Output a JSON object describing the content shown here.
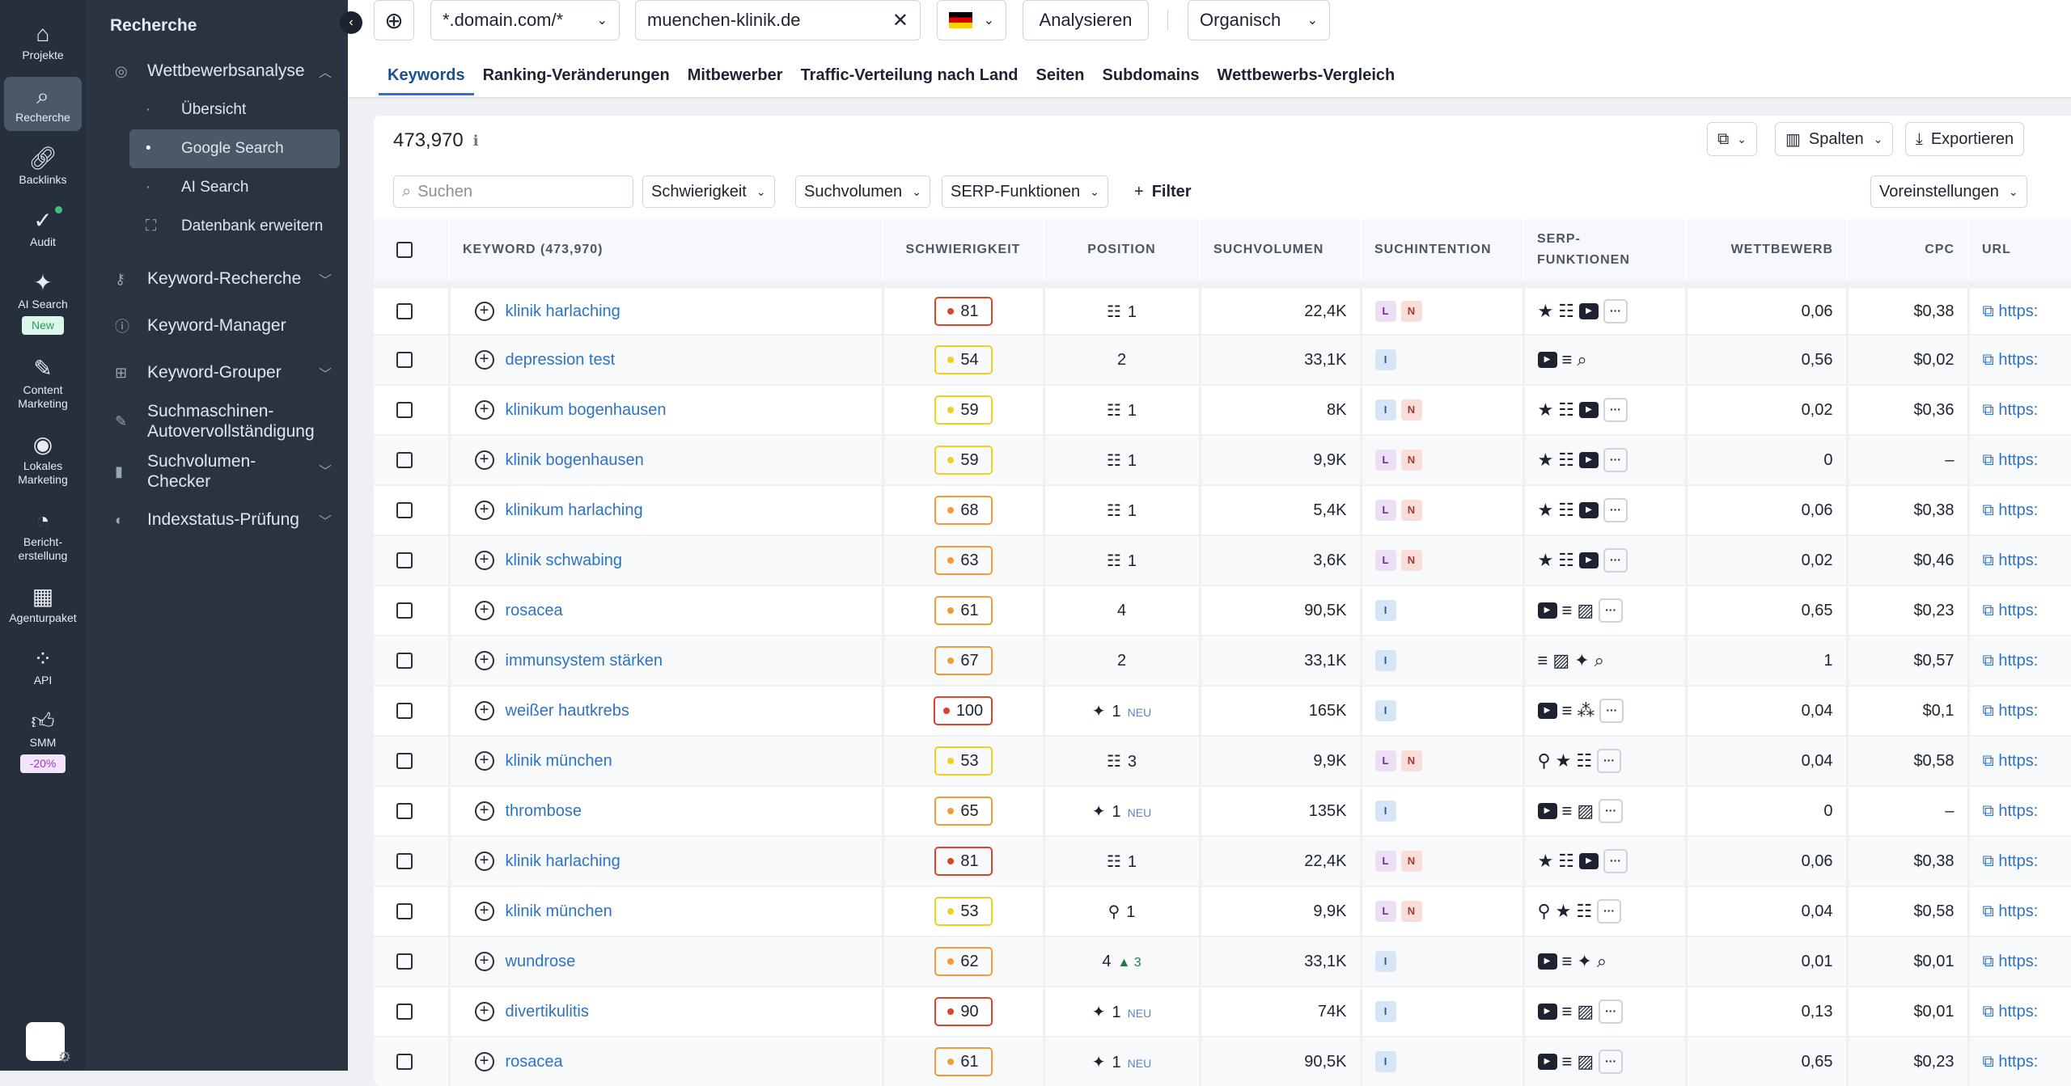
{
  "rail": [
    {
      "label": "Projekte",
      "icon": "home-icon",
      "glyph": "⌂"
    },
    {
      "label": "Recherche",
      "icon": "laptop-search-icon",
      "glyph": "⌕",
      "active": true
    },
    {
      "label": "Backlinks",
      "icon": "link-icon",
      "glyph": "🔗︎"
    },
    {
      "label": "Audit",
      "icon": "check-circle-icon",
      "glyph": "✓",
      "dot": true
    },
    {
      "label": "AI Search",
      "icon": "sparkles-icon",
      "glyph": "✦",
      "badge": "New",
      "badge_kind": "new"
    },
    {
      "label": "Content Marketing",
      "icon": "edit-icon",
      "glyph": "✎"
    },
    {
      "label": "Lokales Marketing",
      "icon": "location-icon",
      "glyph": "◉"
    },
    {
      "label": "Bericht-erstellung",
      "icon": "pie-chart-icon",
      "glyph": "◔"
    },
    {
      "label": "Agenturpaket",
      "icon": "building-icon",
      "glyph": "▦"
    },
    {
      "label": "API",
      "icon": "api-icon",
      "glyph": "⁘"
    },
    {
      "label": "SMM",
      "icon": "thumbs-up-icon",
      "glyph": "👍︎",
      "badge": "-20%",
      "badge_kind": "sale"
    }
  ],
  "sidebar": {
    "title": "Recherche",
    "section": {
      "label": "Wettbewerbsanalyse",
      "children": [
        "Übersicht",
        "Google Search",
        "AI Search"
      ],
      "active": "Google Search"
    },
    "extra": "Datenbank erweitern",
    "items": [
      "Keyword-Recherche",
      "Keyword-Manager",
      "Keyword-Grouper",
      "Suchmaschinen-Autovervollständigung",
      "Suchvolumen-Checker",
      "Indexstatus-Prüfung"
    ]
  },
  "topbar": {
    "scope": "*.domain.com/*",
    "domain": "muenchen-klinik.de",
    "country": "DE",
    "analyze": "Analysieren",
    "type": "Organisch"
  },
  "tabs": [
    "Keywords",
    "Ranking-Veränderungen",
    "Mitbewerber",
    "Traffic-Verteilung nach Land",
    "Seiten",
    "Subdomains",
    "Wettbewerbs-Vergleich"
  ],
  "card": {
    "count": "473,970",
    "columns_btn": "Spalten",
    "export_btn": "Exportieren"
  },
  "filters": {
    "search_placeholder": "Suchen",
    "difficulty": "Schwierigkeit",
    "volume": "Suchvolumen",
    "serp": "SERP-Funktionen",
    "filter": "Filter",
    "presets": "Voreinstellungen"
  },
  "table": {
    "headers": {
      "keyword": "KEYWORD (473,970)",
      "difficulty": "SCHWIERIGKEIT",
      "position": "POSITION",
      "volume": "SUCHVOLUMEN",
      "intent": "SUCHINTENTION",
      "serp": "SERP-FUNKTIONEN",
      "competition": "WETTBEWERB",
      "cpc": "CPC",
      "url": "URL"
    },
    "url_text": "https:",
    "difficulty_colors": {
      "red": "#d9452b",
      "orange": "#f59a3a",
      "yellow": "#f2cf1f"
    },
    "rows": [
      {
        "kw": "klinik harlaching",
        "diff": 81,
        "lvl": "red",
        "pos_icon": "table",
        "pos": "1",
        "vol": "22,4K",
        "intent": [
          "L",
          "N"
        ],
        "serp": [
          "star",
          "table",
          "video",
          "more"
        ],
        "comp": "0,06",
        "cpc": "$0,38"
      },
      {
        "kw": "depression test",
        "diff": 54,
        "lvl": "yellow",
        "pos_icon": "",
        "pos": "2",
        "vol": "33,1K",
        "intent": [
          "I"
        ],
        "serp": [
          "video",
          "list",
          "search"
        ],
        "comp": "0,56",
        "cpc": "$0,02"
      },
      {
        "kw": "klinikum bogenhausen",
        "diff": 59,
        "lvl": "yellow",
        "pos_icon": "table",
        "pos": "1",
        "vol": "8K",
        "intent": [
          "I",
          "N"
        ],
        "serp": [
          "star",
          "table",
          "video",
          "more"
        ],
        "comp": "0,02",
        "cpc": "$0,36"
      },
      {
        "kw": "klinik bogenhausen",
        "diff": 59,
        "lvl": "yellow",
        "pos_icon": "table",
        "pos": "1",
        "vol": "9,9K",
        "intent": [
          "L",
          "N"
        ],
        "serp": [
          "star",
          "table",
          "video",
          "more"
        ],
        "comp": "0",
        "cpc": "–"
      },
      {
        "kw": "klinikum harlaching",
        "diff": 68,
        "lvl": "orange",
        "pos_icon": "table",
        "pos": "1",
        "vol": "5,4K",
        "intent": [
          "L",
          "N"
        ],
        "serp": [
          "star",
          "table",
          "video",
          "more"
        ],
        "comp": "0,06",
        "cpc": "$0,38"
      },
      {
        "kw": "klinik schwabing",
        "diff": 63,
        "lvl": "orange",
        "pos_icon": "table",
        "pos": "1",
        "vol": "3,6K",
        "intent": [
          "L",
          "N"
        ],
        "serp": [
          "star",
          "table",
          "video",
          "more"
        ],
        "comp": "0,02",
        "cpc": "$0,46"
      },
      {
        "kw": "rosacea",
        "diff": 61,
        "lvl": "orange",
        "pos_icon": "",
        "pos": "4",
        "vol": "90,5K",
        "intent": [
          "I"
        ],
        "serp": [
          "video",
          "list",
          "image",
          "more"
        ],
        "comp": "0,65",
        "cpc": "$0,23"
      },
      {
        "kw": "immunsystem stärken",
        "diff": 67,
        "lvl": "orange",
        "pos_icon": "",
        "pos": "2",
        "vol": "33,1K",
        "intent": [
          "I"
        ],
        "serp": [
          "list",
          "image",
          "ai",
          "search"
        ],
        "comp": "1",
        "cpc": "$0,57"
      },
      {
        "kw": "weißer hautkrebs",
        "diff": 100,
        "lvl": "red",
        "pos_icon": "ai",
        "pos": "1",
        "tag": "NEU",
        "vol": "165K",
        "intent": [
          "I"
        ],
        "serp": [
          "video",
          "list",
          "sitelinks",
          "more"
        ],
        "comp": "0,04",
        "cpc": "$0,1"
      },
      {
        "kw": "klinik münchen",
        "diff": 53,
        "lvl": "yellow",
        "pos_icon": "table",
        "pos": "3",
        "vol": "9,9K",
        "intent": [
          "L",
          "N"
        ],
        "serp": [
          "pin",
          "star",
          "table",
          "more"
        ],
        "comp": "0,04",
        "cpc": "$0,58"
      },
      {
        "kw": "thrombose",
        "diff": 65,
        "lvl": "orange",
        "pos_icon": "ai",
        "pos": "1",
        "tag": "NEU",
        "vol": "135K",
        "intent": [
          "I"
        ],
        "serp": [
          "video",
          "list",
          "image",
          "more"
        ],
        "comp": "0",
        "cpc": "–"
      },
      {
        "kw": "klinik harlaching",
        "diff": 81,
        "lvl": "red",
        "pos_icon": "table",
        "pos": "1",
        "vol": "22,4K",
        "intent": [
          "L",
          "N"
        ],
        "serp": [
          "star",
          "table",
          "video",
          "more"
        ],
        "comp": "0,06",
        "cpc": "$0,38"
      },
      {
        "kw": "klinik münchen",
        "diff": 53,
        "lvl": "yellow",
        "pos_icon": "pin",
        "pos": "1",
        "vol": "9,9K",
        "intent": [
          "L",
          "N"
        ],
        "serp": [
          "pin",
          "star",
          "table",
          "more"
        ],
        "comp": "0,04",
        "cpc": "$0,58"
      },
      {
        "kw": "wundrose",
        "diff": 62,
        "lvl": "orange",
        "pos_icon": "",
        "pos": "4",
        "change": "3",
        "vol": "33,1K",
        "intent": [
          "I"
        ],
        "serp": [
          "video",
          "list",
          "ai",
          "search"
        ],
        "comp": "0,01",
        "cpc": "$0,01"
      },
      {
        "kw": "divertikulitis",
        "diff": 90,
        "lvl": "red",
        "pos_icon": "ai",
        "pos": "1",
        "tag": "NEU",
        "vol": "74K",
        "intent": [
          "I"
        ],
        "serp": [
          "video",
          "list",
          "image",
          "more"
        ],
        "comp": "0,13",
        "cpc": "$0,01"
      },
      {
        "kw": "rosacea",
        "diff": 61,
        "lvl": "orange",
        "pos_icon": "ai",
        "pos": "1",
        "tag": "NEU",
        "vol": "90,5K",
        "intent": [
          "I"
        ],
        "serp": [
          "video",
          "list",
          "image",
          "more"
        ],
        "comp": "0,65",
        "cpc": "$0,23"
      }
    ]
  }
}
